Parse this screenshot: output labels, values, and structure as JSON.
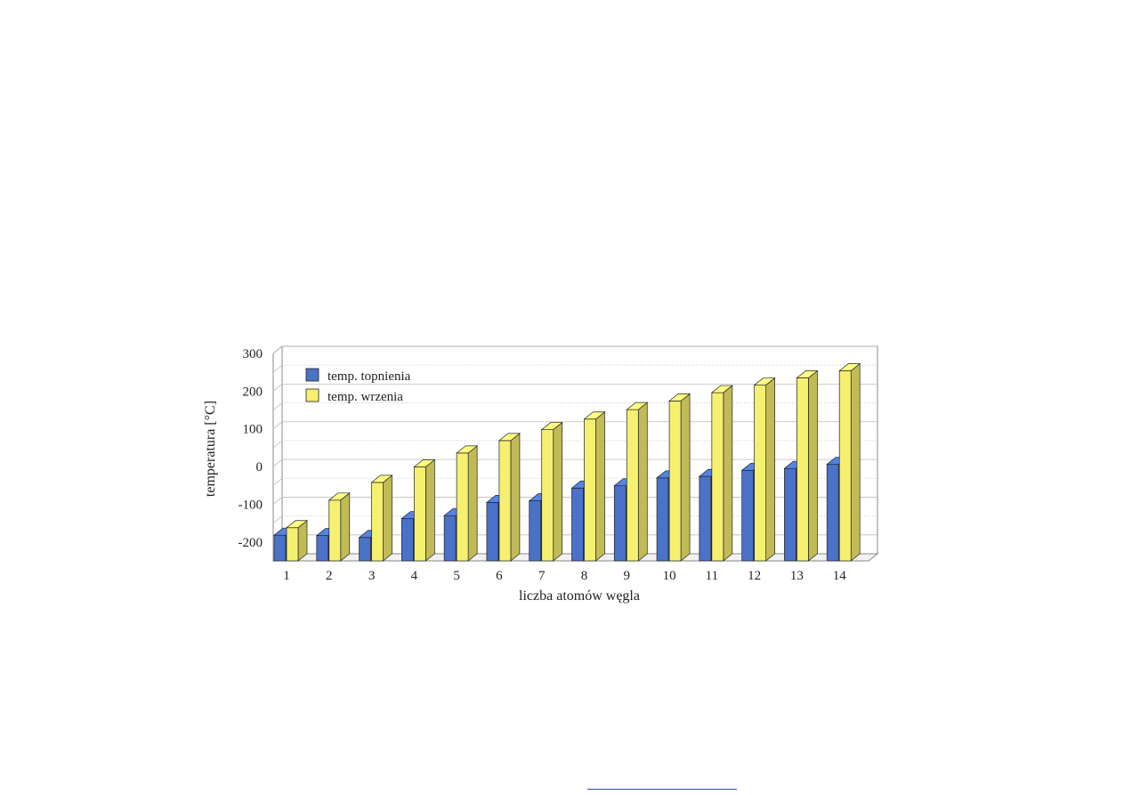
{
  "chart_data": {
    "type": "bar",
    "title": "",
    "xlabel": "liczba atomów węgla",
    "ylabel": "temperatura [°C]",
    "ylim": [
      -250,
      300
    ],
    "yticks": [
      "300",
      "200",
      "100",
      "0",
      "-100",
      "-200"
    ],
    "ytick_values": [
      300,
      200,
      100,
      0,
      -100,
      -200
    ],
    "categories": [
      "1",
      "2",
      "3",
      "4",
      "5",
      "6",
      "7",
      "8",
      "9",
      "10",
      "11",
      "12",
      "13",
      "14"
    ],
    "legend_position": "top-left",
    "grid": true,
    "series": [
      {
        "name": "temp. topnienia",
        "color": "#4a72c8",
        "values": [
          -182,
          -183,
          -188,
          -138,
          -130,
          -95,
          -91,
          -57,
          -51,
          -30,
          -26,
          -10,
          -5,
          6
        ]
      },
      {
        "name": "temp. wrzenia",
        "color": "#f6f070",
        "values": [
          -162,
          -89,
          -42,
          -1,
          36,
          69,
          98,
          126,
          151,
          174,
          196,
          216,
          235,
          254
        ]
      }
    ]
  }
}
